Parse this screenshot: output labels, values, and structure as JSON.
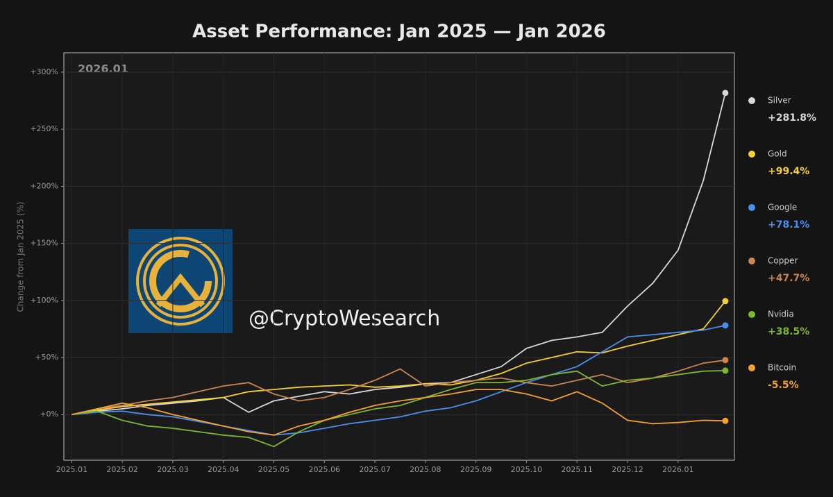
{
  "chart_data": {
    "type": "line",
    "title": "Asset Performance: Jan 2025 — Jan 2026",
    "ylabel": "Change from Jan 2025 (%)",
    "annotation": "2026.01",
    "watermark": "@CryptoWesearch",
    "grid": true,
    "legend": "right",
    "xlim": [
      2024.987,
      2026.093
    ],
    "xticks": [
      {
        "value": 2025,
        "label": "2025.01"
      },
      {
        "value": 2025.0833,
        "label": "2025.02"
      },
      {
        "value": 2025.1667,
        "label": "2025.03"
      },
      {
        "value": 2025.25,
        "label": "2025.04"
      },
      {
        "value": 2025.3333,
        "label": "2025.05"
      },
      {
        "value": 2025.4167,
        "label": "2025.06"
      },
      {
        "value": 2025.5,
        "label": "2025.07"
      },
      {
        "value": 2025.5833,
        "label": "2025.08"
      },
      {
        "value": 2025.6667,
        "label": "2025.09"
      },
      {
        "value": 2025.75,
        "label": "2025.10"
      },
      {
        "value": 2025.8333,
        "label": "2025.11"
      },
      {
        "value": 2025.9167,
        "label": "2025.12"
      },
      {
        "value": 2026,
        "label": "2026.01"
      }
    ],
    "ylim": [
      -40,
      317
    ],
    "yticks": [
      {
        "value": 0,
        "label": "+0%"
      },
      {
        "value": 50,
        "label": "+50%"
      },
      {
        "value": 100,
        "label": "+100%"
      },
      {
        "value": 150,
        "label": "+150%"
      },
      {
        "value": 200,
        "label": "+200%"
      },
      {
        "value": 250,
        "label": "+250%"
      },
      {
        "value": 300,
        "label": "+300%"
      }
    ],
    "x": [
      2025,
      2025.0417,
      2025.0833,
      2025.125,
      2025.1667,
      2025.2083,
      2025.25,
      2025.2917,
      2025.3333,
      2025.375,
      2025.4167,
      2025.4583,
      2025.5,
      2025.5417,
      2025.5833,
      2025.625,
      2025.6667,
      2025.7083,
      2025.75,
      2025.7917,
      2025.8333,
      2025.875,
      2025.9167,
      2025.9583,
      2026,
      2026.0417,
      2026.078
    ],
    "series": [
      {
        "name": "Silver",
        "color": "#d8d8d8",
        "values": [
          0,
          3,
          5,
          8,
          10,
          12,
          15,
          2,
          12,
          16,
          20,
          18,
          22,
          24,
          27,
          28,
          35,
          42,
          58,
          65,
          68,
          72,
          95,
          115,
          144,
          205,
          281.8
        ],
        "value_labels": [
          null,
          null,
          null,
          null,
          null,
          null,
          null,
          null,
          null,
          null,
          null,
          null,
          null,
          null,
          null,
          null,
          null,
          null,
          null,
          null,
          null,
          null,
          null,
          null,
          null,
          null,
          "+281.8%"
        ]
      },
      {
        "name": "Gold",
        "color": "#f5d033",
        "values": [
          0,
          4,
          7,
          9,
          11,
          13,
          15,
          20,
          22,
          24,
          25,
          26,
          24,
          25,
          27,
          26,
          30,
          36,
          45,
          50,
          55,
          54,
          60,
          65,
          70,
          75,
          99.4
        ],
        "value_labels": [
          null,
          null,
          null,
          null,
          null,
          null,
          null,
          null,
          null,
          null,
          null,
          null,
          null,
          null,
          null,
          null,
          null,
          null,
          null,
          null,
          null,
          null,
          null,
          null,
          null,
          null,
          "+99.4%"
        ]
      },
      {
        "name": "Google",
        "color": "#4a8ef0",
        "values": [
          0,
          2,
          3,
          0,
          -2,
          -6,
          -10,
          -14,
          -18,
          -16,
          -12,
          -8,
          -5,
          -2,
          3,
          6,
          12,
          20,
          28,
          35,
          42,
          55,
          68,
          70,
          72,
          74,
          78.1
        ],
        "value_labels": [
          null,
          null,
          null,
          null,
          null,
          null,
          null,
          null,
          null,
          null,
          null,
          null,
          null,
          null,
          null,
          null,
          null,
          null,
          null,
          null,
          null,
          null,
          null,
          null,
          null,
          null,
          "+78.1%"
        ]
      },
      {
        "name": "Copper",
        "color": "#c98550",
        "values": [
          0,
          5,
          8,
          12,
          15,
          20,
          25,
          28,
          18,
          12,
          15,
          22,
          30,
          40,
          25,
          28,
          30,
          32,
          28,
          25,
          30,
          35,
          28,
          32,
          38,
          45,
          47.7
        ],
        "value_labels": [
          null,
          null,
          null,
          null,
          null,
          null,
          null,
          null,
          null,
          null,
          null,
          null,
          null,
          null,
          null,
          null,
          null,
          null,
          null,
          null,
          null,
          null,
          null,
          null,
          null,
          null,
          "+47.7%"
        ]
      },
      {
        "name": "Nvidia",
        "color": "#7cb82f",
        "values": [
          0,
          3,
          -5,
          -10,
          -12,
          -15,
          -18,
          -20,
          -28,
          -15,
          -5,
          0,
          5,
          8,
          15,
          22,
          28,
          28,
          30,
          35,
          38,
          25,
          30,
          32,
          35,
          38,
          38.5
        ],
        "value_labels": [
          null,
          null,
          null,
          null,
          null,
          null,
          null,
          null,
          null,
          null,
          null,
          null,
          null,
          null,
          null,
          null,
          null,
          null,
          null,
          null,
          null,
          null,
          null,
          null,
          null,
          null,
          "+38.5%"
        ]
      },
      {
        "name": "Bitcoin",
        "color": "#f5a030",
        "values": [
          0,
          5,
          10,
          6,
          0,
          -5,
          -10,
          -15,
          -18,
          -10,
          -5,
          2,
          8,
          12,
          15,
          18,
          22,
          22,
          18,
          12,
          20,
          10,
          -5,
          -8,
          -7,
          -5,
          -5.5
        ],
        "value_labels": [
          null,
          null,
          null,
          null,
          null,
          null,
          null,
          null,
          null,
          null,
          null,
          null,
          null,
          null,
          null,
          null,
          null,
          null,
          null,
          null,
          null,
          null,
          null,
          null,
          null,
          null,
          "-5.5%"
        ]
      }
    ]
  }
}
